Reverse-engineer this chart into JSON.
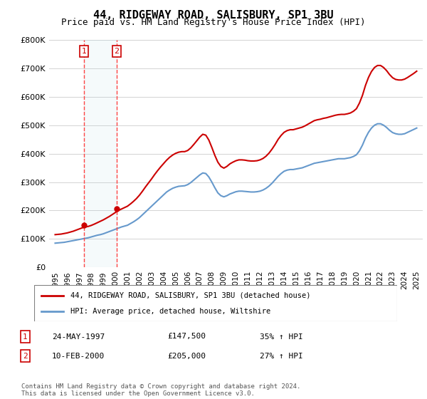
{
  "title": "44, RIDGEWAY ROAD, SALISBURY, SP1 3BU",
  "subtitle": "Price paid vs. HM Land Registry's House Price Index (HPI)",
  "xlabel": "",
  "ylabel": "",
  "ylim": [
    0,
    800000
  ],
  "yticks": [
    0,
    100000,
    200000,
    300000,
    400000,
    500000,
    600000,
    700000,
    800000
  ],
  "ytick_labels": [
    "£0",
    "£100K",
    "£200K",
    "£300K",
    "£400K",
    "£500K",
    "£600K",
    "£700K",
    "£800K"
  ],
  "xlim": [
    1994.5,
    2025.5
  ],
  "xticks": [
    1995,
    1996,
    1997,
    1998,
    1999,
    2000,
    2001,
    2002,
    2003,
    2004,
    2005,
    2006,
    2007,
    2008,
    2009,
    2010,
    2011,
    2012,
    2013,
    2014,
    2015,
    2016,
    2017,
    2018,
    2019,
    2020,
    2021,
    2022,
    2023,
    2024,
    2025
  ],
  "sale1_x": 1997.39,
  "sale1_y": 147500,
  "sale1_label": "1",
  "sale1_date": "24-MAY-1997",
  "sale1_price": "£147,500",
  "sale1_hpi": "35% ↑ HPI",
  "sale2_x": 2000.11,
  "sale2_y": 205000,
  "sale2_label": "2",
  "sale2_date": "10-FEB-2000",
  "sale2_price": "£205,000",
  "sale2_hpi": "27% ↑ HPI",
  "red_color": "#cc0000",
  "blue_color": "#6699cc",
  "vline_color": "#ff4444",
  "box_color": "#cc0000",
  "legend1_label": "44, RIDGEWAY ROAD, SALISBURY, SP1 3BU (detached house)",
  "legend2_label": "HPI: Average price, detached house, Wiltshire",
  "footnote": "Contains HM Land Registry data © Crown copyright and database right 2024.\nThis data is licensed under the Open Government Licence v3.0.",
  "hpi_years": [
    1995,
    1995.25,
    1995.5,
    1995.75,
    1996,
    1996.25,
    1996.5,
    1996.75,
    1997,
    1997.25,
    1997.5,
    1997.75,
    1998,
    1998.25,
    1998.5,
    1998.75,
    1999,
    1999.25,
    1999.5,
    1999.75,
    2000,
    2000.25,
    2000.5,
    2000.75,
    2001,
    2001.25,
    2001.5,
    2001.75,
    2002,
    2002.25,
    2002.5,
    2002.75,
    2003,
    2003.25,
    2003.5,
    2003.75,
    2004,
    2004.25,
    2004.5,
    2004.75,
    2005,
    2005.25,
    2005.5,
    2005.75,
    2006,
    2006.25,
    2006.5,
    2006.75,
    2007,
    2007.25,
    2007.5,
    2007.75,
    2008,
    2008.25,
    2008.5,
    2008.75,
    2009,
    2009.25,
    2009.5,
    2009.75,
    2010,
    2010.25,
    2010.5,
    2010.75,
    2011,
    2011.25,
    2011.5,
    2011.75,
    2012,
    2012.25,
    2012.5,
    2012.75,
    2013,
    2013.25,
    2013.5,
    2013.75,
    2014,
    2014.25,
    2014.5,
    2014.75,
    2015,
    2015.25,
    2015.5,
    2015.75,
    2016,
    2016.25,
    2016.5,
    2016.75,
    2017,
    2017.25,
    2017.5,
    2017.75,
    2018,
    2018.25,
    2018.5,
    2018.75,
    2019,
    2019.25,
    2019.5,
    2019.75,
    2020,
    2020.25,
    2020.5,
    2020.75,
    2021,
    2021.25,
    2021.5,
    2021.75,
    2022,
    2022.25,
    2022.5,
    2022.75,
    2023,
    2023.25,
    2023.5,
    2023.75,
    2024,
    2024.25,
    2024.5,
    2024.75,
    2025
  ],
  "hpi_values": [
    85000,
    86000,
    87000,
    88000,
    90000,
    92000,
    94000,
    96000,
    98000,
    100000,
    102000,
    104000,
    107000,
    110000,
    113000,
    115000,
    118000,
    122000,
    126000,
    130000,
    134000,
    138000,
    142000,
    145000,
    148000,
    154000,
    160000,
    167000,
    175000,
    185000,
    195000,
    205000,
    215000,
    225000,
    235000,
    245000,
    255000,
    265000,
    272000,
    278000,
    282000,
    285000,
    286000,
    287000,
    291000,
    298000,
    307000,
    316000,
    325000,
    332000,
    330000,
    318000,
    300000,
    280000,
    262000,
    252000,
    248000,
    252000,
    258000,
    262000,
    266000,
    268000,
    268000,
    267000,
    266000,
    265000,
    265000,
    266000,
    268000,
    272000,
    278000,
    286000,
    296000,
    308000,
    320000,
    330000,
    338000,
    342000,
    344000,
    344000,
    346000,
    348000,
    350000,
    354000,
    358000,
    362000,
    366000,
    368000,
    370000,
    372000,
    374000,
    376000,
    378000,
    380000,
    382000,
    382000,
    382000,
    384000,
    386000,
    390000,
    396000,
    410000,
    430000,
    455000,
    475000,
    490000,
    500000,
    505000,
    505000,
    500000,
    492000,
    482000,
    474000,
    470000,
    468000,
    468000,
    470000,
    475000,
    480000,
    485000,
    490000
  ],
  "red_years": [
    1995,
    1995.25,
    1995.5,
    1995.75,
    1996,
    1996.25,
    1996.5,
    1996.75,
    1997,
    1997.25,
    1997.5,
    1997.75,
    1998,
    1998.25,
    1998.5,
    1998.75,
    1999,
    1999.25,
    1999.5,
    1999.75,
    2000,
    2000.25,
    2000.5,
    2000.75,
    2001,
    2001.25,
    2001.5,
    2001.75,
    2002,
    2002.25,
    2002.5,
    2002.75,
    2003,
    2003.25,
    2003.5,
    2003.75,
    2004,
    2004.25,
    2004.5,
    2004.75,
    2005,
    2005.25,
    2005.5,
    2005.75,
    2006,
    2006.25,
    2006.5,
    2006.75,
    2007,
    2007.25,
    2007.5,
    2007.75,
    2008,
    2008.25,
    2008.5,
    2008.75,
    2009,
    2009.25,
    2009.5,
    2009.75,
    2010,
    2010.25,
    2010.5,
    2010.75,
    2011,
    2011.25,
    2011.5,
    2011.75,
    2012,
    2012.25,
    2012.5,
    2012.75,
    2013,
    2013.25,
    2013.5,
    2013.75,
    2014,
    2014.25,
    2014.5,
    2014.75,
    2015,
    2015.25,
    2015.5,
    2015.75,
    2016,
    2016.25,
    2016.5,
    2016.75,
    2017,
    2017.25,
    2017.5,
    2017.75,
    2018,
    2018.25,
    2018.5,
    2018.75,
    2019,
    2019.25,
    2019.5,
    2019.75,
    2020,
    2020.25,
    2020.5,
    2020.75,
    2021,
    2021.25,
    2021.5,
    2021.75,
    2022,
    2022.25,
    2022.5,
    2022.75,
    2023,
    2023.25,
    2023.5,
    2023.75,
    2024,
    2024.25,
    2024.5,
    2024.75,
    2025
  ],
  "red_values": [
    115000,
    116000,
    117000,
    119000,
    121000,
    124000,
    127000,
    131000,
    135000,
    139000,
    142000,
    144000,
    147500,
    152000,
    157000,
    162000,
    167000,
    173000,
    179000,
    186000,
    193000,
    200000,
    205000,
    210000,
    215000,
    223000,
    232000,
    242000,
    254000,
    268000,
    283000,
    297000,
    311000,
    326000,
    340000,
    353000,
    365000,
    377000,
    387000,
    395000,
    401000,
    405000,
    407000,
    407000,
    411000,
    420000,
    432000,
    445000,
    458000,
    468000,
    465000,
    448000,
    422000,
    394000,
    370000,
    355000,
    349000,
    355000,
    364000,
    370000,
    375000,
    378000,
    378000,
    377000,
    375000,
    374000,
    374000,
    375000,
    378000,
    383000,
    391000,
    402000,
    416000,
    432000,
    450000,
    464000,
    475000,
    481000,
    484000,
    484000,
    487000,
    490000,
    493000,
    498000,
    504000,
    510000,
    516000,
    519000,
    521000,
    524000,
    526000,
    529000,
    532000,
    535000,
    537000,
    538000,
    538000,
    540000,
    543000,
    549000,
    558000,
    578000,
    605000,
    640000,
    668000,
    689000,
    703000,
    710000,
    710000,
    703000,
    692000,
    678000,
    667000,
    661000,
    659000,
    659000,
    662000,
    668000,
    675000,
    682000,
    690000
  ]
}
